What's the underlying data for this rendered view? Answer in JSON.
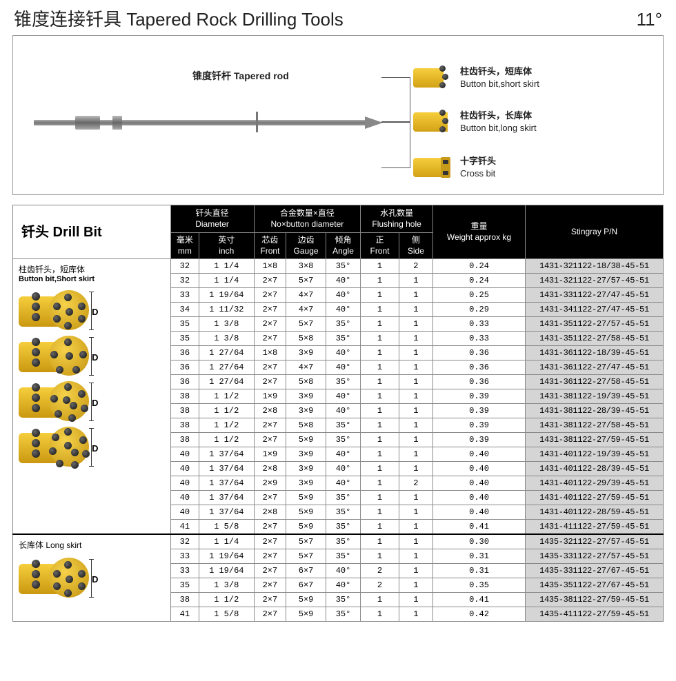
{
  "header": {
    "title": "锥度连接钎具 Tapered Rock Drilling Tools",
    "angle": "11°"
  },
  "diagram": {
    "rod_label": "锥度钎杆 Tapered rod",
    "bits": [
      {
        "cn": "柱齿钎头，短库体",
        "en": "Button bit,short skirt"
      },
      {
        "cn": "柱齿钎头，长库体",
        "en": "Button bit,long skirt"
      },
      {
        "cn": "十字钎头",
        "en": "Cross bit"
      }
    ]
  },
  "table_header": {
    "drill_bit_hdr": "钎头 Drill Bit",
    "diameter_cn": "钎头直径",
    "diameter_en": "Diameter",
    "button_cn": "合金数量×直径",
    "button_en": "No×button diameter",
    "flush_cn": "水孔数量",
    "flush_en": "Flushing hole",
    "weight_cn": "重量",
    "weight_en": "Weight approx kg",
    "pn": "Stingray P/N",
    "mm_cn": "毫米",
    "mm_en": "mm",
    "inch_cn": "英寸",
    "inch_en": "inch",
    "front_cn": "芯齿",
    "front_en": "Front",
    "gauge_cn": "边齿",
    "gauge_en": "Gauge",
    "angle_cn": "倾角",
    "angle_en": "Angle",
    "f_front_cn": "正",
    "f_front_en": "Front",
    "f_side_cn": "侧",
    "f_side_en": "Side"
  },
  "sections": [
    {
      "label_cn": "柱齿钎头，短库体",
      "label_en": "Button bit,Short skirt",
      "img_variants": 4,
      "rows": [
        {
          "mm": "32",
          "inch": "1 1/4",
          "front": "1×8",
          "gauge": "3×8",
          "angle": "35°",
          "ffront": "1",
          "fside": "2",
          "wt": "0.24",
          "pn": "1431-321122-18/38-45-51"
        },
        {
          "mm": "32",
          "inch": "1 1/4",
          "front": "2×7",
          "gauge": "5×7",
          "angle": "40°",
          "ffront": "1",
          "fside": "1",
          "wt": "0.24",
          "pn": "1431-321122-27/57-45-51"
        },
        {
          "mm": "33",
          "inch": "1 19/64",
          "front": "2×7",
          "gauge": "4×7",
          "angle": "40°",
          "ffront": "1",
          "fside": "1",
          "wt": "0.25",
          "pn": "1431-331122-27/47-45-51"
        },
        {
          "mm": "34",
          "inch": "1 11/32",
          "front": "2×7",
          "gauge": "4×7",
          "angle": "40°",
          "ffront": "1",
          "fside": "1",
          "wt": "0.29",
          "pn": "1431-341122-27/47-45-51"
        },
        {
          "mm": "35",
          "inch": "1 3/8",
          "front": "2×7",
          "gauge": "5×7",
          "angle": "35°",
          "ffront": "1",
          "fside": "1",
          "wt": "0.33",
          "pn": "1431-351122-27/57-45-51"
        },
        {
          "mm": "35",
          "inch": "1 3/8",
          "front": "2×7",
          "gauge": "5×8",
          "angle": "35°",
          "ffront": "1",
          "fside": "1",
          "wt": "0.33",
          "pn": "1431-351122-27/58-45-51"
        },
        {
          "mm": "36",
          "inch": "1 27/64",
          "front": "1×8",
          "gauge": "3×9",
          "angle": "40°",
          "ffront": "1",
          "fside": "1",
          "wt": "0.36",
          "pn": "1431-361122-18/39-45-51"
        },
        {
          "mm": "36",
          "inch": "1 27/64",
          "front": "2×7",
          "gauge": "4×7",
          "angle": "40°",
          "ffront": "1",
          "fside": "1",
          "wt": "0.36",
          "pn": "1431-361122-27/47-45-51"
        },
        {
          "mm": "36",
          "inch": "1 27/64",
          "front": "2×7",
          "gauge": "5×8",
          "angle": "35°",
          "ffront": "1",
          "fside": "1",
          "wt": "0.36",
          "pn": "1431-361122-27/58-45-51"
        },
        {
          "mm": "38",
          "inch": "1 1/2",
          "front": "1×9",
          "gauge": "3×9",
          "angle": "40°",
          "ffront": "1",
          "fside": "1",
          "wt": "0.39",
          "pn": "1431-381122-19/39-45-51"
        },
        {
          "mm": "38",
          "inch": "1 1/2",
          "front": "2×8",
          "gauge": "3×9",
          "angle": "40°",
          "ffront": "1",
          "fside": "1",
          "wt": "0.39",
          "pn": "1431-381122-28/39-45-51"
        },
        {
          "mm": "38",
          "inch": "1 1/2",
          "front": "2×7",
          "gauge": "5×8",
          "angle": "35°",
          "ffront": "1",
          "fside": "1",
          "wt": "0.39",
          "pn": "1431-381122-27/58-45-51"
        },
        {
          "mm": "38",
          "inch": "1 1/2",
          "front": "2×7",
          "gauge": "5×9",
          "angle": "35°",
          "ffront": "1",
          "fside": "1",
          "wt": "0.39",
          "pn": "1431-381122-27/59-45-51"
        },
        {
          "mm": "40",
          "inch": "1 37/64",
          "front": "1×9",
          "gauge": "3×9",
          "angle": "40°",
          "ffront": "1",
          "fside": "1",
          "wt": "0.40",
          "pn": "1431-401122-19/39-45-51"
        },
        {
          "mm": "40",
          "inch": "1 37/64",
          "front": "2×8",
          "gauge": "3×9",
          "angle": "40°",
          "ffront": "1",
          "fside": "1",
          "wt": "0.40",
          "pn": "1431-401122-28/39-45-51"
        },
        {
          "mm": "40",
          "inch": "1 37/64",
          "front": "2×9",
          "gauge": "3×9",
          "angle": "40°",
          "ffront": "1",
          "fside": "2",
          "wt": "0.40",
          "pn": "1431-401122-29/39-45-51"
        },
        {
          "mm": "40",
          "inch": "1 37/64",
          "front": "2×7",
          "gauge": "5×9",
          "angle": "35°",
          "ffront": "1",
          "fside": "1",
          "wt": "0.40",
          "pn": "1431-401122-27/59-45-51"
        },
        {
          "mm": "40",
          "inch": "1 37/64",
          "front": "2×8",
          "gauge": "5×9",
          "angle": "35°",
          "ffront": "1",
          "fside": "1",
          "wt": "0.40",
          "pn": "1431-401122-28/59-45-51"
        },
        {
          "mm": "41",
          "inch": "1 5/8",
          "front": "2×7",
          "gauge": "5×9",
          "angle": "35°",
          "ffront": "1",
          "fside": "1",
          "wt": "0.41",
          "pn": "1431-411122-27/59-45-51"
        }
      ]
    },
    {
      "label_cn": "长库体 Long skirt",
      "label_en": "",
      "img_variants": 1,
      "rows": [
        {
          "mm": "32",
          "inch": "1 1/4",
          "front": "2×7",
          "gauge": "5×7",
          "angle": "35°",
          "ffront": "1",
          "fside": "1",
          "wt": "0.30",
          "pn": "1435-321122-27/57-45-51"
        },
        {
          "mm": "33",
          "inch": "1 19/64",
          "front": "2×7",
          "gauge": "5×7",
          "angle": "35°",
          "ffront": "1",
          "fside": "1",
          "wt": "0.31",
          "pn": "1435-331122-27/57-45-51"
        },
        {
          "mm": "33",
          "inch": "1 19/64",
          "front": "2×7",
          "gauge": "6×7",
          "angle": "40°",
          "ffront": "2",
          "fside": "1",
          "wt": "0.31",
          "pn": "1435-331122-27/67-45-51"
        },
        {
          "mm": "35",
          "inch": "1 3/8",
          "front": "2×7",
          "gauge": "6×7",
          "angle": "40°",
          "ffront": "2",
          "fside": "1",
          "wt": "0.35",
          "pn": "1435-351122-27/67-45-51"
        },
        {
          "mm": "38",
          "inch": "1 1/2",
          "front": "2×7",
          "gauge": "5×9",
          "angle": "35°",
          "ffront": "1",
          "fside": "1",
          "wt": "0.41",
          "pn": "1435-381122-27/59-45-51"
        },
        {
          "mm": "41",
          "inch": "1 5/8",
          "front": "2×7",
          "gauge": "5×9",
          "angle": "35°",
          "ffront": "1",
          "fside": "1",
          "wt": "0.42",
          "pn": "1435-411122-27/59-45-51"
        }
      ]
    }
  ],
  "colors": {
    "bit_yellow": "#f6ce3d",
    "bit_yellow_dk": "#c3920f",
    "tooth": "#222",
    "pn_bg": "#d5d5d5",
    "header_bg": "#000"
  }
}
